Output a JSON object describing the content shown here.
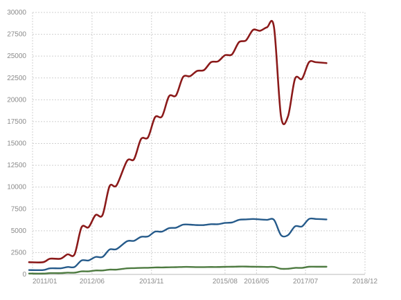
{
  "chart_data": {
    "type": "line",
    "title": "",
    "xlabel": "",
    "ylabel": "",
    "x_tick_labels": [
      "2011/01",
      "2012/06",
      "2013/11",
      "2015/08",
      "2016/05",
      "2017/07",
      "2018/12"
    ],
    "x_ticks_date": [
      "2011-01",
      "2012-06",
      "2013-11",
      "2015-08",
      "2016-05",
      "2017-07",
      "2018-12"
    ],
    "y_ticks": [
      0,
      2500,
      5000,
      7500,
      10000,
      12500,
      15000,
      17500,
      20000,
      22500,
      25000,
      27500,
      30000
    ],
    "y_tick_labels": [
      "0",
      "2500",
      "5000",
      "7500",
      "10000",
      "12500",
      "15000",
      "17500",
      "20000",
      "22500",
      "25000",
      "27500",
      "30000"
    ],
    "ylim": [
      0,
      30000
    ],
    "xlim": [
      "2011-01",
      "2018-12"
    ],
    "grid": true,
    "legend": "none",
    "series": [
      {
        "color": "#8b1a1a",
        "points": [
          [
            "2010-12",
            1400
          ],
          [
            "2011-04",
            1400
          ],
          [
            "2011-06",
            1800
          ],
          [
            "2011-09",
            1800
          ],
          [
            "2011-11",
            2300
          ],
          [
            "2012-01",
            2300
          ],
          [
            "2012-03",
            5400
          ],
          [
            "2012-05",
            5400
          ],
          [
            "2012-07",
            6800
          ],
          [
            "2012-09",
            6800
          ],
          [
            "2012-11",
            10100
          ],
          [
            "2013-01",
            10200
          ],
          [
            "2013-04",
            13000
          ],
          [
            "2013-06",
            13200
          ],
          [
            "2013-08",
            15500
          ],
          [
            "2013-10",
            15700
          ],
          [
            "2013-12",
            18000
          ],
          [
            "2014-02",
            18100
          ],
          [
            "2014-04",
            20400
          ],
          [
            "2014-06",
            20500
          ],
          [
            "2014-08",
            22600
          ],
          [
            "2014-10",
            22700
          ],
          [
            "2014-12",
            23300
          ],
          [
            "2015-02",
            23400
          ],
          [
            "2015-04",
            24300
          ],
          [
            "2015-06",
            24400
          ],
          [
            "2015-08",
            25100
          ],
          [
            "2015-10",
            25200
          ],
          [
            "2015-12",
            26600
          ],
          [
            "2016-02",
            26800
          ],
          [
            "2016-04",
            28000
          ],
          [
            "2016-06",
            27900
          ],
          [
            "2016-08",
            28300
          ],
          [
            "2016-10",
            28300
          ],
          [
            "2016-12",
            18100
          ],
          [
            "2017-02",
            18100
          ],
          [
            "2017-04",
            22400
          ],
          [
            "2017-06",
            22400
          ],
          [
            "2017-08",
            24300
          ],
          [
            "2017-10",
            24300
          ],
          [
            "2018-01",
            24200
          ]
        ]
      },
      {
        "color": "#255a8a",
        "points": [
          [
            "2010-12",
            500
          ],
          [
            "2011-04",
            500
          ],
          [
            "2011-06",
            700
          ],
          [
            "2011-09",
            700
          ],
          [
            "2011-11",
            850
          ],
          [
            "2012-01",
            850
          ],
          [
            "2012-03",
            1600
          ],
          [
            "2012-05",
            1600
          ],
          [
            "2012-07",
            2000
          ],
          [
            "2012-09",
            2000
          ],
          [
            "2012-11",
            2850
          ],
          [
            "2013-01",
            2900
          ],
          [
            "2013-04",
            3800
          ],
          [
            "2013-06",
            3850
          ],
          [
            "2013-08",
            4300
          ],
          [
            "2013-10",
            4350
          ],
          [
            "2013-12",
            4900
          ],
          [
            "2014-02",
            4900
          ],
          [
            "2014-04",
            5300
          ],
          [
            "2014-06",
            5350
          ],
          [
            "2014-08",
            5700
          ],
          [
            "2014-10",
            5700
          ],
          [
            "2014-12",
            5650
          ],
          [
            "2015-02",
            5650
          ],
          [
            "2015-04",
            5750
          ],
          [
            "2015-06",
            5750
          ],
          [
            "2015-08",
            5900
          ],
          [
            "2015-10",
            5950
          ],
          [
            "2015-12",
            6250
          ],
          [
            "2016-02",
            6300
          ],
          [
            "2016-04",
            6350
          ],
          [
            "2016-06",
            6300
          ],
          [
            "2016-08",
            6250
          ],
          [
            "2016-10",
            6250
          ],
          [
            "2016-12",
            4500
          ],
          [
            "2017-02",
            4500
          ],
          [
            "2017-04",
            5500
          ],
          [
            "2017-06",
            5500
          ],
          [
            "2017-08",
            6350
          ],
          [
            "2017-10",
            6350
          ],
          [
            "2018-01",
            6300
          ]
        ]
      },
      {
        "color": "#4d7a40",
        "points": [
          [
            "2010-12",
            100
          ],
          [
            "2011-04",
            100
          ],
          [
            "2011-06",
            150
          ],
          [
            "2011-09",
            150
          ],
          [
            "2011-11",
            200
          ],
          [
            "2012-01",
            200
          ],
          [
            "2012-03",
            350
          ],
          [
            "2012-05",
            350
          ],
          [
            "2012-07",
            450
          ],
          [
            "2012-09",
            450
          ],
          [
            "2012-11",
            550
          ],
          [
            "2013-01",
            550
          ],
          [
            "2013-04",
            700
          ],
          [
            "2013-06",
            720
          ],
          [
            "2013-08",
            750
          ],
          [
            "2013-10",
            760
          ],
          [
            "2013-12",
            800
          ],
          [
            "2014-02",
            800
          ],
          [
            "2014-04",
            820
          ],
          [
            "2014-06",
            830
          ],
          [
            "2014-08",
            860
          ],
          [
            "2014-10",
            860
          ],
          [
            "2014-12",
            840
          ],
          [
            "2015-02",
            840
          ],
          [
            "2015-04",
            850
          ],
          [
            "2015-06",
            850
          ],
          [
            "2015-08",
            870
          ],
          [
            "2015-10",
            880
          ],
          [
            "2015-12",
            900
          ],
          [
            "2016-02",
            900
          ],
          [
            "2016-04",
            880
          ],
          [
            "2016-06",
            870
          ],
          [
            "2016-08",
            860
          ],
          [
            "2016-10",
            860
          ],
          [
            "2016-12",
            650
          ],
          [
            "2017-02",
            650
          ],
          [
            "2017-04",
            750
          ],
          [
            "2017-06",
            750
          ],
          [
            "2017-08",
            880
          ],
          [
            "2017-10",
            880
          ],
          [
            "2018-01",
            880
          ]
        ]
      }
    ]
  }
}
